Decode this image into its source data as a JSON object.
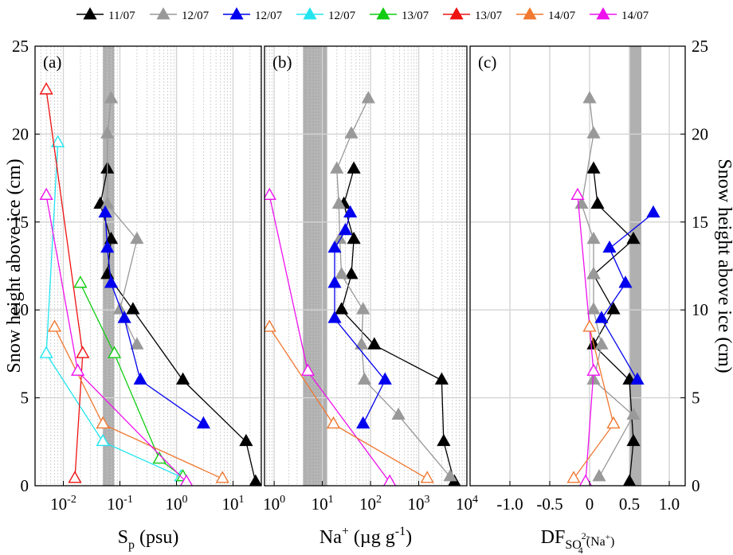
{
  "chart_data": {
    "type": "line",
    "legend": {
      "placement": "top",
      "entries": [
        {
          "label": "11/07",
          "color": "#000000",
          "filled": true
        },
        {
          "label": "12/07",
          "color": "#999999",
          "filled": true
        },
        {
          "label": "12/07",
          "color": "#0000ee",
          "filled": true
        },
        {
          "label": "12/07",
          "color": "#22e5f0",
          "filled": true
        },
        {
          "label": "13/07",
          "color": "#11cc11",
          "filled": true
        },
        {
          "label": "13/07",
          "color": "#ee1111",
          "filled": true
        },
        {
          "label": "14/07",
          "color": "#f07830",
          "filled": true
        },
        {
          "label": "14/07",
          "color": "#ee11ee",
          "filled": true
        }
      ]
    },
    "ylabel": "Snow height above ice (cm)",
    "ylim": [
      0,
      25
    ],
    "yticks": [
      "0",
      "5",
      "10",
      "15",
      "20",
      "25"
    ],
    "panels": [
      {
        "id": "a",
        "label": "(a)",
        "xscale": "log",
        "xlim_log10": [
          -2.5,
          1.5
        ],
        "xticks": [
          {
            "exp": -2,
            "label": "10",
            "sup": "-2"
          },
          {
            "exp": -1,
            "label": "10",
            "sup": "-1"
          },
          {
            "exp": 0,
            "label": "10",
            "sup": "0"
          },
          {
            "exp": 1,
            "label": "10",
            "sup": "1"
          }
        ],
        "xlabel": {
          "main": "S",
          "sub": "p",
          "tail": " (psu)"
        },
        "band_log10": [
          -1.3,
          -1.1
        ],
        "series": [
          {
            "color": "#000000",
            "filled": true,
            "points": [
              [
                25,
                0.2
              ],
              [
                17,
                2.5
              ],
              [
                1.3,
                6
              ],
              [
                0.17,
                10
              ],
              [
                0.06,
                12
              ],
              [
                0.07,
                14
              ],
              [
                0.045,
                16
              ],
              [
                0.06,
                18
              ]
            ]
          },
          {
            "color": "#999999",
            "filled": true,
            "points": [
              [
                0.2,
                8
              ],
              [
                0.1,
                10
              ],
              [
                0.2,
                14
              ],
              [
                0.06,
                16
              ],
              [
                0.06,
                20
              ],
              [
                0.07,
                22
              ]
            ]
          },
          {
            "color": "#0000ee",
            "filled": true,
            "points": [
              [
                3,
                3.5
              ],
              [
                0.23,
                6
              ],
              [
                0.12,
                9.5
              ],
              [
                0.07,
                11.5
              ],
              [
                0.06,
                13.5
              ],
              [
                0.055,
                15.5
              ]
            ]
          },
          {
            "color": "#22e5f0",
            "filled": false,
            "points": [
              [
                1.2,
                0.5
              ],
              [
                0.05,
                2.5
              ],
              [
                0.005,
                7.5
              ],
              [
                0.008,
                19.5
              ]
            ]
          },
          {
            "color": "#11cc11",
            "filled": false,
            "points": [
              [
                1.3,
                0.5
              ],
              [
                0.5,
                1.5
              ],
              [
                0.08,
                7.5
              ],
              [
                0.02,
                11.5
              ]
            ]
          },
          {
            "color": "#ee1111",
            "filled": false,
            "points": [
              [
                0.016,
                0.4
              ],
              [
                0.022,
                7.5
              ],
              [
                0.005,
                22.5
              ]
            ]
          },
          {
            "color": "#f07830",
            "filled": false,
            "points": [
              [
                6.5,
                0.4
              ],
              [
                0.05,
                3.5
              ],
              [
                0.007,
                9
              ]
            ]
          },
          {
            "color": "#ee11ee",
            "filled": false,
            "points": [
              [
                1.5,
                0.2
              ],
              [
                0.018,
                6.5
              ],
              [
                0.005,
                16.5
              ]
            ]
          }
        ]
      },
      {
        "id": "b",
        "label": "(b)",
        "xscale": "log",
        "xlim_log10": [
          -0.2,
          4
        ],
        "xticks": [
          {
            "exp": 0,
            "label": "10",
            "sup": "0"
          },
          {
            "exp": 1,
            "label": "10",
            "sup": "1"
          },
          {
            "exp": 2,
            "label": "10",
            "sup": "2"
          },
          {
            "exp": 3,
            "label": "10",
            "sup": "3"
          },
          {
            "exp": 4,
            "label": "10",
            "sup": "4"
          }
        ],
        "xlabel": {
          "main": "Na",
          "sup": "+",
          "tail": " (µg g",
          "tailsup": "-1",
          "close": ")"
        },
        "band_log10": [
          0.6,
          1.1
        ],
        "series": [
          {
            "color": "#000000",
            "filled": true,
            "points": [
              [
                5500,
                0.2
              ],
              [
                3300,
                2.5
              ],
              [
                3000,
                6
              ],
              [
                120,
                8
              ],
              [
                25,
                10
              ],
              [
                40,
                12
              ],
              [
                45,
                14
              ],
              [
                28,
                16
              ],
              [
                45,
                18
              ]
            ]
          },
          {
            "color": "#999999",
            "filled": true,
            "points": [
              [
                4500,
                0.5
              ],
              [
                380,
                4
              ],
              [
                75,
                6
              ],
              [
                65,
                8
              ],
              [
                70,
                10
              ],
              [
                25,
                12
              ],
              [
                23,
                14
              ],
              [
                22,
                16
              ],
              [
                20,
                18
              ],
              [
                40,
                20
              ],
              [
                90,
                22
              ]
            ]
          },
          {
            "color": "#0000ee",
            "filled": true,
            "points": [
              [
                70,
                3.5
              ],
              [
                200,
                6
              ],
              [
                18,
                9.5
              ],
              [
                18,
                11.5
              ],
              [
                18,
                13.5
              ],
              [
                30,
                14.5
              ],
              [
                38,
                15.5
              ]
            ]
          },
          {
            "color": "#ee11ee",
            "filled": false,
            "points": [
              [
                250,
                0.2
              ],
              [
                5,
                6.5
              ],
              [
                0.8,
                16.5
              ]
            ]
          },
          {
            "color": "#f07830",
            "filled": false,
            "points": [
              [
                1500,
                0.4
              ],
              [
                17,
                3.5
              ],
              [
                0.8,
                9
              ]
            ]
          }
        ]
      },
      {
        "id": "c",
        "label": "(c)",
        "xscale": "linear",
        "xlim": [
          -1.5,
          1.2
        ],
        "xticks": [
          "-1.0",
          "-0.5",
          "0",
          "0.5",
          "1.0"
        ],
        "xlabel": {
          "main": "DF",
          "sub": "SO",
          "sub2": "4",
          "subsup": "2-",
          "tail": "(Na",
          "tailsup": "+",
          "close": ")"
        },
        "band": [
          0.5,
          0.65
        ],
        "series": [
          {
            "color": "#000000",
            "filled": true,
            "points": [
              [
                0.5,
                0.2
              ],
              [
                0.55,
                2.5
              ],
              [
                0.5,
                6
              ],
              [
                0.05,
                8
              ],
              [
                0.3,
                10
              ],
              [
                0.05,
                12
              ],
              [
                0.55,
                14
              ],
              [
                0.1,
                16
              ],
              [
                0.05,
                18
              ]
            ]
          },
          {
            "color": "#999999",
            "filled": true,
            "points": [
              [
                0.12,
                0.5
              ],
              [
                0.55,
                4
              ],
              [
                0.05,
                6
              ],
              [
                0.15,
                8
              ],
              [
                0.05,
                10
              ],
              [
                0.05,
                12
              ],
              [
                0.05,
                14
              ],
              [
                -0.1,
                16
              ],
              [
                0.05,
                20
              ],
              [
                0.0,
                22
              ]
            ]
          },
          {
            "color": "#0000ee",
            "filled": true,
            "points": [
              [
                0.6,
                6
              ],
              [
                0.15,
                9.5
              ],
              [
                0.45,
                11.5
              ],
              [
                0.25,
                13.5
              ],
              [
                0.8,
                15.5
              ]
            ]
          },
          {
            "color": "#ee11ee",
            "filled": false,
            "points": [
              [
                -0.05,
                0.2
              ],
              [
                0.05,
                6.5
              ],
              [
                -0.15,
                16.5
              ]
            ]
          },
          {
            "color": "#f07830",
            "filled": false,
            "points": [
              [
                -0.2,
                0.4
              ],
              [
                0.3,
                3.5
              ],
              [
                0.0,
                9
              ]
            ]
          }
        ]
      }
    ],
    "y2ticks": [
      "0",
      "5",
      "10",
      "15",
      "20",
      "25"
    ]
  }
}
